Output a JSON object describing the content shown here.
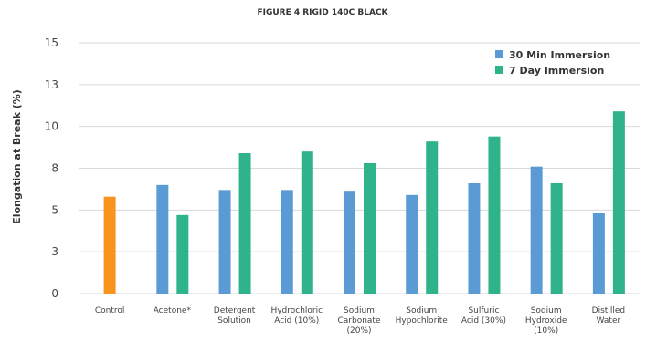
{
  "chart_data": {
    "type": "bar",
    "title": "FIGURE 4 RIGID 140C BLACK",
    "ylabel": "Elongation at Break (%)",
    "ylim": [
      0,
      15
    ],
    "yticks": [
      {
        "value": 0,
        "label": "0"
      },
      {
        "value": 2.5,
        "label": "3"
      },
      {
        "value": 5,
        "label": "5"
      },
      {
        "value": 7.5,
        "label": "8"
      },
      {
        "value": 10,
        "label": "10"
      },
      {
        "value": 12.5,
        "label": "13"
      },
      {
        "value": 15,
        "label": "15"
      }
    ],
    "grid": true,
    "legend_position": "top-right",
    "categories": [
      [
        "Control"
      ],
      [
        "Acetone*"
      ],
      [
        "Detergent",
        "Solution"
      ],
      [
        "Hydrochloric",
        "Acid (10%)"
      ],
      [
        "Sodium",
        "Carbonate",
        "(20%)"
      ],
      [
        "Sodium",
        "Hypochlorite"
      ],
      [
        "Sulfuric",
        "Acid (30%)"
      ],
      [
        "Sodium",
        "Hydroxide",
        "(10%)"
      ],
      [
        "Distilled",
        "Water"
      ]
    ],
    "control": {
      "value": 5.8,
      "color": "#f7941d"
    },
    "series": [
      {
        "name": "30 Min Immersion",
        "color": "#5b9bd5",
        "values": [
          null,
          6.5,
          6.2,
          6.2,
          6.1,
          5.9,
          6.6,
          7.6,
          4.8
        ]
      },
      {
        "name": "7 Day Immersion",
        "color": "#2fb38a",
        "values": [
          null,
          4.7,
          8.4,
          8.5,
          7.8,
          9.1,
          9.4,
          6.6,
          10.9
        ]
      }
    ]
  }
}
